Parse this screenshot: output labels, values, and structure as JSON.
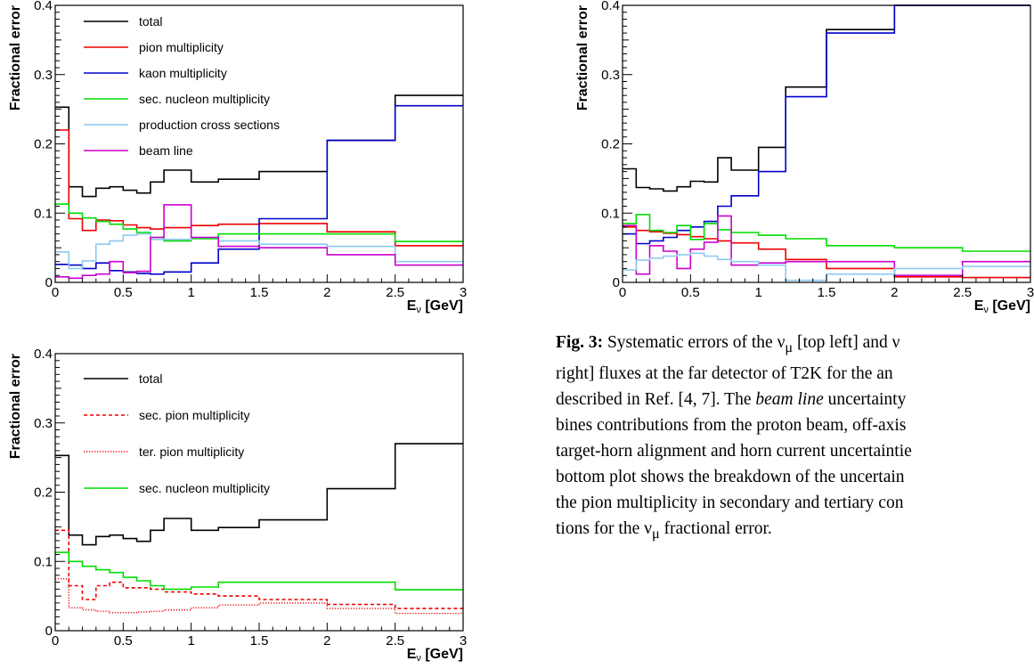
{
  "chart_data": [
    {
      "type": "line",
      "panel": "top-left",
      "step": true,
      "xlabel": "E_ν [GeV]",
      "ylabel": "Fractional error",
      "xlim": [
        0,
        3
      ],
      "ylim": [
        0,
        0.4
      ],
      "xticks": [
        "0",
        "0.5",
        "1",
        "1.5",
        "2",
        "2.5",
        "3"
      ],
      "yticks": [
        "0",
        "0.1",
        "0.2",
        "0.3",
        "0.4"
      ],
      "legend": "top-left",
      "edges": [
        0,
        0.1,
        0.2,
        0.3,
        0.4,
        0.5,
        0.6,
        0.7,
        0.8,
        1.0,
        1.2,
        1.5,
        2.0,
        2.5,
        3.0
      ],
      "series": [
        {
          "name": "total",
          "color": "#000000",
          "dash": "solid",
          "values": [
            0.253,
            0.138,
            0.124,
            0.136,
            0.138,
            0.133,
            0.129,
            0.145,
            0.162,
            0.145,
            0.149,
            0.16,
            0.205,
            0.27
          ]
        },
        {
          "name": "pion multiplicity",
          "color": "#ee0000",
          "dash": "solid",
          "values": [
            0.22,
            0.092,
            0.075,
            0.09,
            0.089,
            0.083,
            0.079,
            0.077,
            0.079,
            0.082,
            0.084,
            0.085,
            0.073,
            0.053
          ]
        },
        {
          "name": "kaon multiplicity",
          "color": "#0000cc",
          "dash": "solid",
          "values": [
            0.026,
            0.025,
            0.02,
            0.028,
            0.017,
            0.015,
            0.013,
            0.012,
            0.015,
            0.028,
            0.048,
            0.092,
            0.205,
            0.255
          ]
        },
        {
          "name": "sec. nucleon multiplicity",
          "color": "#00dd00",
          "dash": "solid",
          "values": [
            0.113,
            0.1,
            0.093,
            0.088,
            0.084,
            0.077,
            0.072,
            0.065,
            0.06,
            0.063,
            0.07,
            0.07,
            0.07,
            0.059
          ]
        },
        {
          "name": "production cross sections",
          "color": "#8ec9f0",
          "dash": "solid",
          "values": [
            0.044,
            0.02,
            0.031,
            0.055,
            0.06,
            0.068,
            0.07,
            0.062,
            0.062,
            0.065,
            0.06,
            0.055,
            0.052,
            0.03
          ]
        },
        {
          "name": "beam line",
          "color": "#cc00cc",
          "dash": "solid",
          "values": [
            0.008,
            0.006,
            0.01,
            0.012,
            0.03,
            0.014,
            0.016,
            0.065,
            0.112,
            0.065,
            0.052,
            0.05,
            0.04,
            0.025
          ]
        }
      ]
    },
    {
      "type": "line",
      "panel": "top-right",
      "step": true,
      "xlabel": "E_ν [GeV]",
      "ylabel": "Fractional error",
      "xlim": [
        0,
        3
      ],
      "ylim": [
        0,
        0.4
      ],
      "xticks": [
        "0",
        "0.5",
        "1",
        "1.5",
        "2",
        "2.5",
        "3"
      ],
      "yticks": [
        "0",
        "0.1",
        "0.2",
        "0.3",
        "0.4"
      ],
      "edges": [
        0,
        0.1,
        0.2,
        0.3,
        0.4,
        0.5,
        0.6,
        0.7,
        0.8,
        1.0,
        1.2,
        1.5,
        2.0,
        2.5,
        3.0
      ],
      "series": [
        {
          "color": "#000000",
          "dash": "solid",
          "values": [
            0.164,
            0.137,
            0.135,
            0.132,
            0.138,
            0.146,
            0.145,
            0.18,
            0.162,
            0.195,
            0.282,
            0.365,
            0.4,
            0.4
          ]
        },
        {
          "color": "#0000cc",
          "dash": "solid",
          "values": [
            0.07,
            0.056,
            0.06,
            0.065,
            0.075,
            0.08,
            0.088,
            0.11,
            0.125,
            0.16,
            0.268,
            0.36,
            0.4,
            0.4
          ]
        },
        {
          "color": "#ee0000",
          "dash": "solid",
          "values": [
            0.08,
            0.075,
            0.073,
            0.071,
            0.069,
            0.066,
            0.063,
            0.06,
            0.057,
            0.048,
            0.033,
            0.02,
            0.008,
            0.007
          ]
        },
        {
          "color": "#00dd00",
          "dash": "solid",
          "values": [
            0.085,
            0.098,
            0.075,
            0.072,
            0.082,
            0.062,
            0.085,
            0.076,
            0.072,
            0.068,
            0.063,
            0.053,
            0.05,
            0.045
          ]
        },
        {
          "color": "#cc00cc",
          "dash": "solid",
          "values": [
            0.082,
            0.012,
            0.053,
            0.045,
            0.02,
            0.048,
            0.058,
            0.096,
            0.025,
            0.028,
            0.03,
            0.03,
            0.01,
            0.03
          ]
        },
        {
          "color": "#8ec9f0",
          "dash": "solid",
          "values": [
            0.018,
            0.032,
            0.035,
            0.038,
            0.04,
            0.042,
            0.038,
            0.033,
            0.03,
            0.025,
            0.003,
            0.012,
            0.02,
            0.023
          ]
        }
      ]
    },
    {
      "type": "line",
      "panel": "bottom-left",
      "step": true,
      "xlabel": "E_ν [GeV]",
      "ylabel": "Fractional error",
      "xlim": [
        0,
        3
      ],
      "ylim": [
        0,
        0.4
      ],
      "xticks": [
        "0",
        "0.5",
        "1",
        "1.5",
        "2",
        "2.5",
        "3"
      ],
      "yticks": [
        "0",
        "0.1",
        "0.2",
        "0.3",
        "0.4"
      ],
      "legend": "top-left",
      "edges": [
        0,
        0.1,
        0.2,
        0.3,
        0.4,
        0.5,
        0.6,
        0.7,
        0.8,
        1.0,
        1.2,
        1.5,
        2.0,
        2.5,
        3.0
      ],
      "series": [
        {
          "name": "total",
          "color": "#000000",
          "dash": "solid",
          "values": [
            0.253,
            0.138,
            0.124,
            0.136,
            0.138,
            0.133,
            0.129,
            0.145,
            0.162,
            0.145,
            0.149,
            0.16,
            0.205,
            0.27
          ]
        },
        {
          "name": "sec. pion multiplicity",
          "color": "#ee0000",
          "dash": "dashed",
          "values": [
            0.145,
            0.065,
            0.045,
            0.065,
            0.07,
            0.062,
            0.062,
            0.06,
            0.056,
            0.053,
            0.05,
            0.045,
            0.038,
            0.032
          ]
        },
        {
          "name": "ter. pion multiplicity",
          "color": "#ee0000",
          "dash": "dotted",
          "values": [
            0.075,
            0.033,
            0.03,
            0.028,
            0.026,
            0.026,
            0.027,
            0.028,
            0.03,
            0.033,
            0.037,
            0.04,
            0.032,
            0.025
          ]
        },
        {
          "name": "sec. nucleon multiplicity",
          "color": "#00dd00",
          "dash": "solid",
          "values": [
            0.113,
            0.1,
            0.093,
            0.088,
            0.084,
            0.077,
            0.072,
            0.065,
            0.06,
            0.063,
            0.07,
            0.07,
            0.07,
            0.059
          ]
        }
      ]
    }
  ],
  "caption": {
    "label": "Fig. 3:",
    "lines": [
      " Systematic errors of the ν",
      "right] fluxes at the far detector of T2K for the an",
      "described in Ref. [4, 7]. The ",
      "bines contributions from the proton beam, off-axis",
      "target-horn alignment and horn current uncertaintie",
      "bottom plot shows the breakdown of the uncertain",
      "the pion multiplicity in secondary and tertiary con",
      "tions for the ν"
    ],
    "l1_sub": "μ",
    "l1_rest": " [top left] and ν",
    "l3_italic": "beam line",
    "l3_rest": " uncertainty",
    "l8_sub": "μ",
    "l8_rest": " fractional error."
  }
}
